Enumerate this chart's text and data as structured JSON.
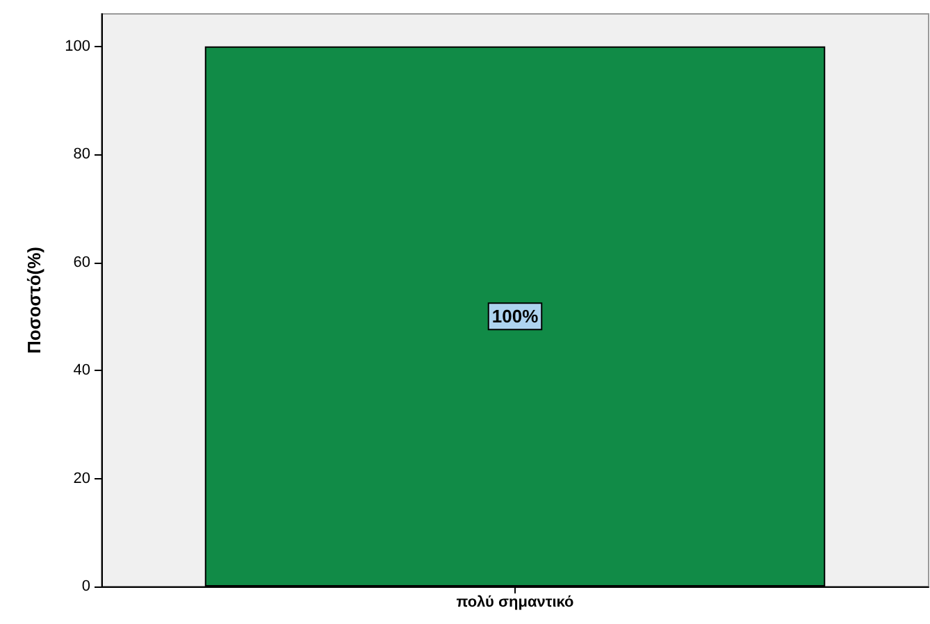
{
  "chart_data": {
    "type": "bar",
    "ylabel": "Ποσοστό(%)",
    "categories": [
      "πολύ σημαντικό"
    ],
    "values": [
      100
    ],
    "color": "#118b47",
    "value_labels": [
      "100%"
    ],
    "ylim": [
      0,
      106
    ],
    "yticks": [
      0,
      20,
      40,
      60,
      80,
      100
    ],
    "grid": false
  }
}
